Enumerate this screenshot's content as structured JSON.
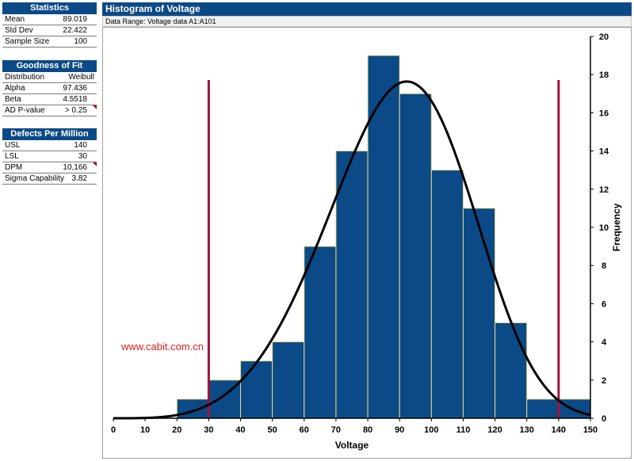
{
  "statistics": {
    "title": "Statistics",
    "rows": [
      {
        "label": "Mean",
        "value": "89.019"
      },
      {
        "label": "Std Dev",
        "value": "22.422"
      },
      {
        "label": "Sample Size",
        "value": "100"
      }
    ]
  },
  "goodness_of_fit": {
    "title": "Goodness of Fit",
    "rows": [
      {
        "label": "Distribution",
        "value": "Weibull"
      },
      {
        "label": "Alpha",
        "value": "97.436"
      },
      {
        "label": "Beta",
        "value": "4.5518"
      },
      {
        "label": "AD P-value",
        "value": "> 0.25"
      }
    ]
  },
  "defects_per_million": {
    "title": "Defects Per Million",
    "rows": [
      {
        "label": "USL",
        "value": "140"
      },
      {
        "label": "LSL",
        "value": "30"
      },
      {
        "label": "DPM",
        "value": "10,166"
      },
      {
        "label": "Sigma Capability",
        "value": "3.82"
      }
    ]
  },
  "chart_header": "Histogram of Voltage",
  "data_range": "Data Range: Voltage data A1:A101",
  "watermark": "www.cabit.com.cn",
  "colors": {
    "header": "#0b4a86",
    "bar_fill": "#0b4a86",
    "bar_edge": "#e8d98a",
    "spec_line": "#a0143c",
    "curve": "#000000",
    "watermark": "#e0201c"
  },
  "chart_data": {
    "type": "bar",
    "xlabel": "Voltage",
    "ylabel": "Frequency",
    "xlim": [
      0,
      150
    ],
    "ylim": [
      0,
      20
    ],
    "x_ticks": [
      0,
      10,
      20,
      30,
      40,
      50,
      60,
      70,
      80,
      90,
      100,
      110,
      120,
      130,
      140,
      150
    ],
    "y_ticks": [
      0,
      2,
      4,
      6,
      8,
      10,
      12,
      14,
      16,
      18,
      20
    ],
    "y_axis_side": "right",
    "bins": [
      {
        "start": 20,
        "end": 30,
        "count": 1
      },
      {
        "start": 30,
        "end": 40,
        "count": 2
      },
      {
        "start": 40,
        "end": 50,
        "count": 3
      },
      {
        "start": 50,
        "end": 60,
        "count": 4
      },
      {
        "start": 60,
        "end": 70,
        "count": 9
      },
      {
        "start": 70,
        "end": 80,
        "count": 14
      },
      {
        "start": 80,
        "end": 90,
        "count": 19
      },
      {
        "start": 90,
        "end": 100,
        "count": 17
      },
      {
        "start": 100,
        "end": 110,
        "count": 13
      },
      {
        "start": 110,
        "end": 120,
        "count": 11
      },
      {
        "start": 120,
        "end": 130,
        "count": 5
      },
      {
        "start": 130,
        "end": 140,
        "count": 1
      },
      {
        "start": 140,
        "end": 150,
        "count": 1
      }
    ],
    "fit_curve": {
      "distribution": "Weibull",
      "alpha": 97.436,
      "beta": 4.5518,
      "n": 100,
      "bin_width": 10
    },
    "spec_lines": [
      {
        "label": "LSL",
        "value": 30
      },
      {
        "label": "USL",
        "value": 140
      }
    ]
  }
}
